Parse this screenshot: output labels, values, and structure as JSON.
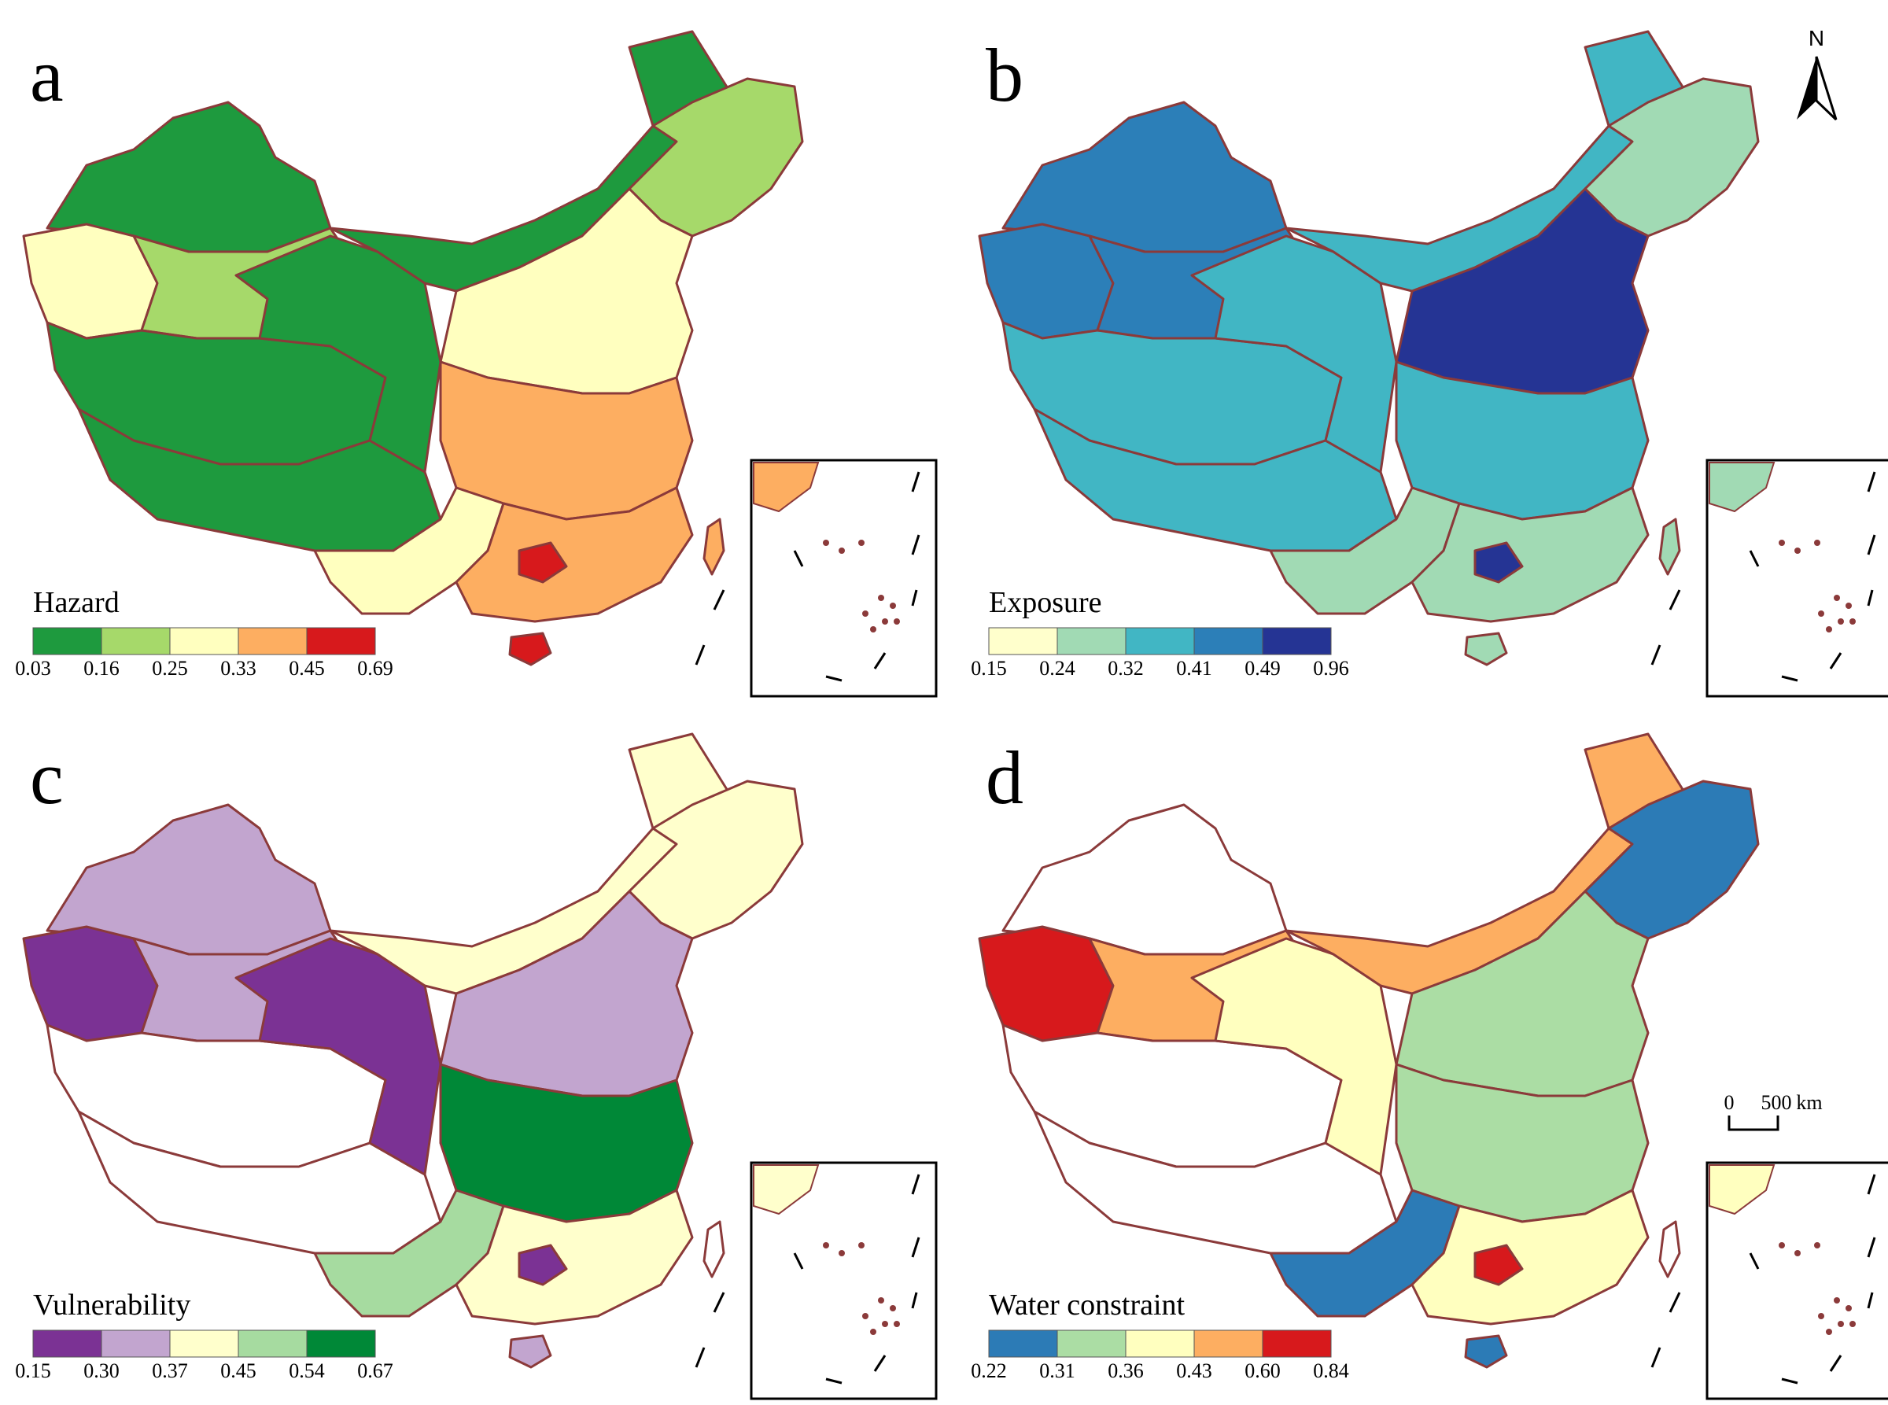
{
  "figure": {
    "north_label": "N",
    "scale_bar": {
      "start_label": "0",
      "end_label": "500",
      "unit": "km"
    },
    "boundary_color": "#8b3a3a",
    "panels": [
      {
        "letter": "a",
        "legend_title": "Hazard",
        "breaks": [
          "0.03",
          "0.16",
          "0.25",
          "0.33",
          "0.45",
          "0.69"
        ],
        "colors": [
          "#1e9a3e",
          "#a6d96a",
          "#ffffbf",
          "#fdae61",
          "#d7191c"
        ],
        "regions": {
          "northwest": "#ffffbf",
          "north_xinjiang": "#1e9a3e",
          "central_xinjiang": "#a6d96a",
          "south_xinjiang": "#1e9a3e",
          "tibet": "#1e9a3e",
          "qinghai": "#1e9a3e",
          "inner_mongolia": "#1e9a3e",
          "northeast": "#a6d96a",
          "north_china": "#ffffbf",
          "central": "#fdae61",
          "southwest": "#ffffbf",
          "south": "#fdae61",
          "hotspot": "#d7191c",
          "taiwan": "#fdae61",
          "hainan": "#d7191c"
        }
      },
      {
        "letter": "b",
        "legend_title": "Exposure",
        "breaks": [
          "0.15",
          "0.24",
          "0.32",
          "0.41",
          "0.49",
          "0.96"
        ],
        "colors": [
          "#ffffcc",
          "#a1dab4",
          "#41b6c4",
          "#2c7fb8",
          "#253494"
        ],
        "regions": {
          "northwest": "#2c7fb8",
          "north_xinjiang": "#2c7fb8",
          "central_xinjiang": "#2c7fb8",
          "south_xinjiang": "#41b6c4",
          "tibet": "#41b6c4",
          "qinghai": "#41b6c4",
          "inner_mongolia": "#41b6c4",
          "northeast": "#a1dab4",
          "north_china": "#253494",
          "central": "#41b6c4",
          "southwest": "#a1dab4",
          "south": "#a1dab4",
          "hotspot": "#253494",
          "taiwan": "#a1dab4",
          "hainan": "#a1dab4"
        }
      },
      {
        "letter": "c",
        "legend_title": "Vulnerability",
        "breaks": [
          "0.15",
          "0.30",
          "0.37",
          "0.45",
          "0.54",
          "0.67"
        ],
        "colors": [
          "#7b3294",
          "#c2a5cf",
          "#ffffcc",
          "#a6dba0",
          "#008837"
        ],
        "regions": {
          "northwest": "#7b3294",
          "north_xinjiang": "#c2a5cf",
          "central_xinjiang": "#c2a5cf",
          "south_xinjiang": "#ffffff",
          "tibet": "#ffffff",
          "qinghai": "#7b3294",
          "inner_mongolia": "#ffffcc",
          "northeast": "#ffffcc",
          "north_china": "#c2a5cf",
          "central": "#008837",
          "southwest": "#a6dba0",
          "south": "#ffffcc",
          "hotspot": "#7b3294",
          "taiwan": "#ffffff",
          "hainan": "#c2a5cf"
        }
      },
      {
        "letter": "d",
        "legend_title": "Water constraint",
        "breaks": [
          "0.22",
          "0.31",
          "0.36",
          "0.43",
          "0.60",
          "0.84"
        ],
        "colors": [
          "#2c7bb6",
          "#abdda4",
          "#ffffbf",
          "#fdae61",
          "#d7191c"
        ],
        "regions": {
          "northwest": "#d7191c",
          "north_xinjiang": "#ffffff",
          "central_xinjiang": "#fdae61",
          "south_xinjiang": "#ffffff",
          "tibet": "#ffffff",
          "qinghai": "#ffffbf",
          "inner_mongolia": "#fdae61",
          "northeast": "#2c7bb6",
          "north_china": "#abdda4",
          "central": "#abdda4",
          "southwest": "#2c7bb6",
          "south": "#ffffbf",
          "hotspot": "#d7191c",
          "taiwan": "#ffffff",
          "hainan": "#2c7bb6"
        }
      }
    ]
  }
}
